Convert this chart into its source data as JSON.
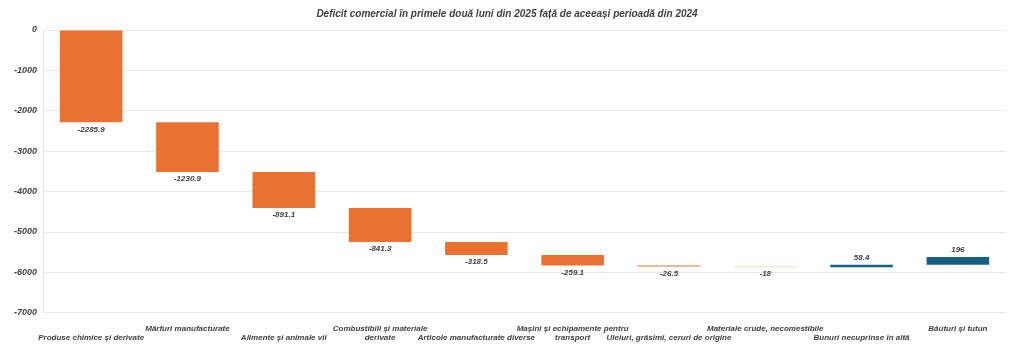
{
  "chart_data": {
    "type": "bar",
    "title": "Deficit comercial în primele două luni din 2025 față de aceeași perioadă din 2024",
    "categories": [
      "Produse chimice și derivate",
      "Mărfuri manufacturate",
      "Alimente și animale vii",
      "Combustibili și materiale derivate",
      "Articole manufacturate diverse",
      "Mașini și echipamente pentru transport",
      "Uleiuri, grăsimi, ceruri de origine",
      "Materiale crude, necomestibile",
      "Bunuri necuprinse în altă",
      "Băuturi și tutun"
    ],
    "values": [
      -2285.9,
      -1230.9,
      -891.1,
      -841.3,
      -318.5,
      -259.1,
      -26.5,
      -18,
      58.4,
      196
    ],
    "base": [
      0,
      -2285.9,
      -3516.8,
      -4407.9,
      -5249.2,
      -5567.7,
      -5826.8,
      -5853.3,
      -5871.3,
      -5812.9
    ],
    "colors": [
      "#e97132",
      "#e97132",
      "#e97132",
      "#e97132",
      "#e97132",
      "#e97132",
      "#e97132",
      "#f7c9ab",
      "#156082",
      "#156082"
    ],
    "ylim": [
      -7000,
      0
    ],
    "yticks": [
      0,
      -1000,
      -2000,
      -3000,
      -4000,
      -5000,
      -6000,
      -7000
    ],
    "grid": "y",
    "legend": false,
    "data_labels": true
  }
}
